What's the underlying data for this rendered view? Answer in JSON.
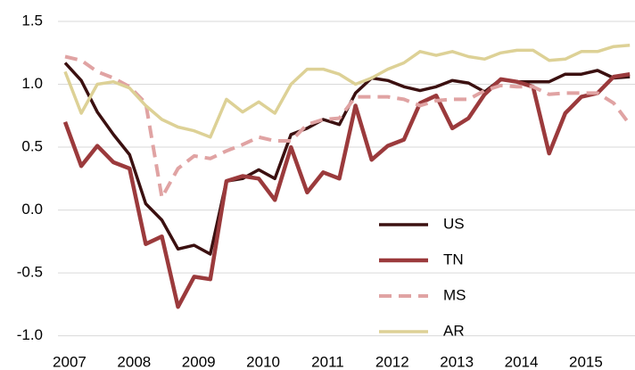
{
  "chart_data": {
    "type": "line",
    "x": [
      2007,
      2007.25,
      2007.5,
      2007.75,
      2008,
      2008.25,
      2008.5,
      2008.75,
      2009,
      2009.25,
      2009.5,
      2009.75,
      2010,
      2010.25,
      2010.5,
      2010.75,
      2011,
      2011.25,
      2011.5,
      2011.75,
      2012,
      2012.25,
      2012.5,
      2012.75,
      2013,
      2013.25,
      2013.5,
      2013.75,
      2014,
      2014.25,
      2014.5,
      2014.75,
      2015,
      2015.25,
      2015.5,
      2015.75
    ],
    "series": [
      {
        "name": "US",
        "color": "#3b1010",
        "dashed": false,
        "values": [
          1.17,
          1.03,
          0.78,
          0.6,
          0.44,
          0.05,
          -0.08,
          -0.31,
          -0.28,
          -0.35,
          0.23,
          0.25,
          0.32,
          0.25,
          0.6,
          0.65,
          0.72,
          0.68,
          0.93,
          1.05,
          1.03,
          0.98,
          0.95,
          0.98,
          1.03,
          1.01,
          0.94,
          1.04,
          1.02,
          1.02,
          1.02,
          1.08,
          1.08,
          1.11,
          1.05,
          1.06
        ]
      },
      {
        "name": "TN",
        "color": "#9b3a3c",
        "dashed": false,
        "values": [
          0.7,
          0.35,
          0.51,
          0.38,
          0.33,
          -0.27,
          -0.21,
          -0.77,
          -0.53,
          -0.55,
          0.23,
          0.27,
          0.25,
          0.08,
          0.5,
          0.14,
          0.3,
          0.25,
          0.83,
          0.4,
          0.51,
          0.56,
          0.85,
          0.91,
          0.65,
          0.73,
          0.92,
          1.04,
          1.02,
          0.98,
          0.45,
          0.77,
          0.9,
          0.93,
          1.06,
          1.08
        ]
      },
      {
        "name": "MS",
        "color": "#e0a3a3",
        "dashed": true,
        "values": [
          1.22,
          1.19,
          1.1,
          1.05,
          0.98,
          0.85,
          0.1,
          0.33,
          0.43,
          0.41,
          0.47,
          0.52,
          0.58,
          0.55,
          0.55,
          0.68,
          0.72,
          0.73,
          0.9,
          0.9,
          0.9,
          0.88,
          0.83,
          0.87,
          0.88,
          0.88,
          0.95,
          0.99,
          0.98,
          0.98,
          0.92,
          0.93,
          0.93,
          0.93,
          0.85,
          0.68
        ]
      },
      {
        "name": "AR",
        "color": "#ddd196",
        "dashed": false,
        "values": [
          1.1,
          0.77,
          1.0,
          1.02,
          0.97,
          0.83,
          0.72,
          0.66,
          0.63,
          0.58,
          0.88,
          0.78,
          0.86,
          0.77,
          1.0,
          1.12,
          1.12,
          1.08,
          1.0,
          1.05,
          1.12,
          1.17,
          1.26,
          1.23,
          1.26,
          1.22,
          1.2,
          1.25,
          1.27,
          1.27,
          1.19,
          1.2,
          1.26,
          1.26,
          1.3,
          1.31
        ]
      }
    ],
    "xlim": [
      2006.89,
      2015.83
    ],
    "xticks": [
      2007,
      2008,
      2009,
      2010,
      2011,
      2012,
      2013,
      2014,
      2015
    ],
    "ylim": [
      -1.13,
      1.67
    ],
    "yticks": [
      1.5,
      {
        "value": 1,
        "label": "1.0"
      },
      0.5,
      {
        "value": 0,
        "label": "0.0"
      },
      -0.5,
      {
        "value": -1,
        "label": "-1.0"
      }
    ],
    "grid": true
  }
}
